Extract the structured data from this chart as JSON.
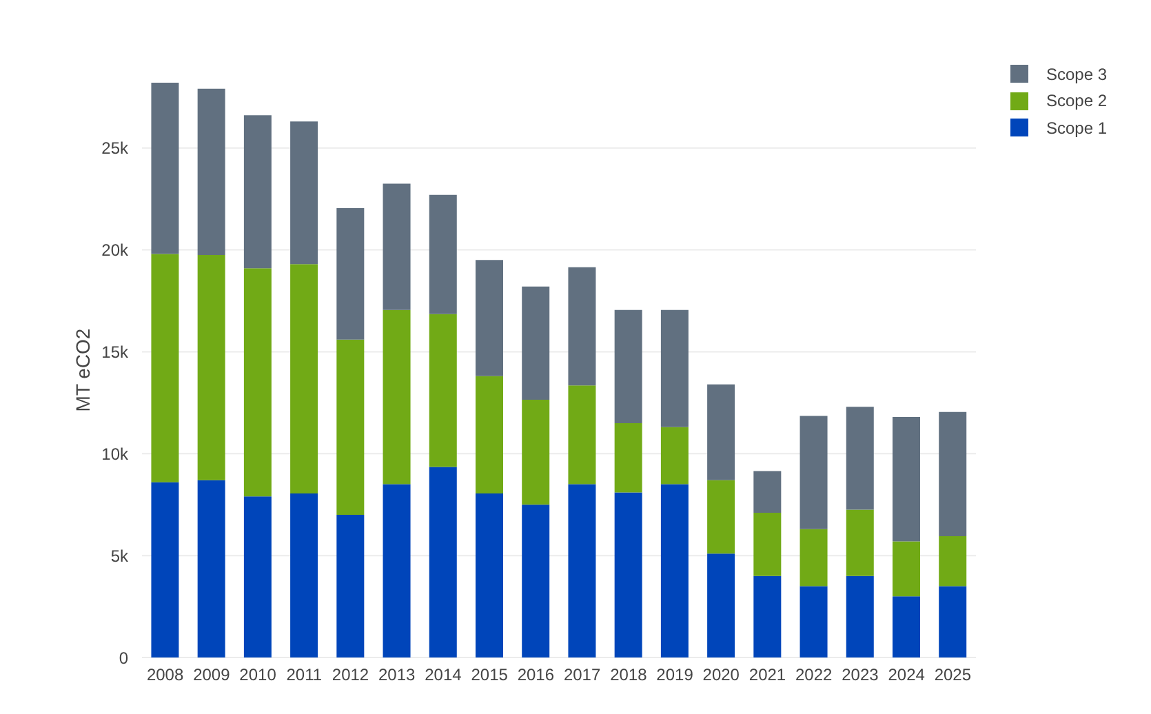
{
  "chart_data": {
    "type": "bar",
    "ylabel": "MT eCO2",
    "stacked": true,
    "categories": [
      "2008",
      "2009",
      "2010",
      "2011",
      "2012",
      "2013",
      "2014",
      "2015",
      "2016",
      "2017",
      "2018",
      "2019",
      "2020",
      "2021",
      "2022",
      "2023",
      "2024",
      "2025"
    ],
    "series": [
      {
        "name": "Scope 1",
        "color": "#0045ba",
        "values": [
          8600,
          8700,
          7900,
          8050,
          7000,
          8500,
          9350,
          8050,
          7500,
          8500,
          8100,
          8500,
          5100,
          4000,
          3500,
          4000,
          3000,
          3500
        ]
      },
      {
        "name": "Scope 2",
        "color": "#71aa16",
        "values": [
          11200,
          11050,
          11200,
          11250,
          8600,
          8550,
          7500,
          5750,
          5150,
          4850,
          3400,
          2800,
          3600,
          3100,
          2800,
          3250,
          2700,
          2450
        ]
      },
      {
        "name": "Scope 3",
        "color": "#617080",
        "values": [
          8400,
          8150,
          7500,
          7000,
          6450,
          6200,
          5850,
          5700,
          5550,
          5800,
          5550,
          5750,
          4700,
          2050,
          5550,
          5050,
          6100,
          6100
        ]
      }
    ],
    "ylim": [
      0,
      28200
    ],
    "yticks": [
      0,
      {
        "value": 5000,
        "label": "5k"
      },
      {
        "value": 10000,
        "label": "10k"
      },
      {
        "value": 15000,
        "label": "15k"
      },
      {
        "value": 20000,
        "label": "20k"
      },
      {
        "value": 25000,
        "label": "25k"
      }
    ],
    "grid": "y",
    "legend": "top right"
  }
}
